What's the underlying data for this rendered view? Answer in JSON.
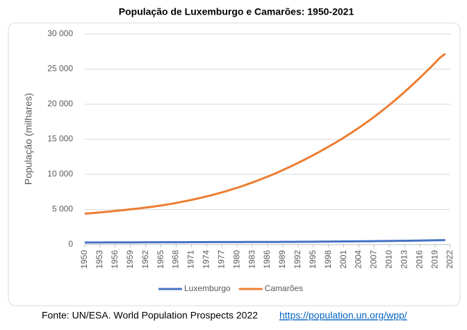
{
  "chart_data": {
    "type": "line",
    "title": "População de Luxemburgo e Camarões: 1950-2021",
    "y_label": "População (milhares)",
    "x": [
      1950,
      1951,
      1952,
      1953,
      1954,
      1955,
      1956,
      1957,
      1958,
      1959,
      1960,
      1961,
      1962,
      1963,
      1964,
      1965,
      1966,
      1967,
      1968,
      1969,
      1970,
      1971,
      1972,
      1973,
      1974,
      1975,
      1976,
      1977,
      1978,
      1979,
      1980,
      1981,
      1982,
      1983,
      1984,
      1985,
      1986,
      1987,
      1988,
      1989,
      1990,
      1991,
      1992,
      1993,
      1994,
      1995,
      1996,
      1997,
      1998,
      1999,
      2000,
      2001,
      2002,
      2003,
      2004,
      2005,
      2006,
      2007,
      2008,
      2009,
      2010,
      2011,
      2012,
      2013,
      2014,
      2015,
      2016,
      2017,
      2018,
      2019,
      2020,
      2021
    ],
    "series": [
      {
        "name": "Luxemburgo",
        "color": "#4472c4",
        "values": [
          296,
          298,
          300,
          302,
          304,
          306,
          308,
          310,
          312,
          314,
          315,
          318,
          321,
          324,
          327,
          330,
          332,
          334,
          336,
          338,
          339,
          342,
          345,
          348,
          351,
          354,
          357,
          360,
          362,
          364,
          364,
          365,
          366,
          367,
          368,
          369,
          371,
          373,
          376,
          379,
          382,
          387,
          392,
          397,
          402,
          407,
          413,
          419,
          425,
          431,
          436,
          442,
          448,
          454,
          461,
          468,
          476,
          484,
          492,
          500,
          507,
          517,
          527,
          538,
          549,
          561,
          573,
          585,
          597,
          610,
          622,
          634
        ]
      },
      {
        "name": "Camarões",
        "color": "#ed7d31",
        "values": [
          4400,
          4460,
          4520,
          4580,
          4650,
          4720,
          4790,
          4860,
          4940,
          5020,
          5100,
          5180,
          5270,
          5360,
          5460,
          5570,
          5680,
          5800,
          5930,
          6070,
          6210,
          6360,
          6520,
          6690,
          6860,
          7040,
          7230,
          7430,
          7640,
          7860,
          8090,
          8330,
          8580,
          8840,
          9110,
          9390,
          9680,
          9980,
          10290,
          10610,
          10940,
          11280,
          11630,
          11990,
          12360,
          12740,
          13130,
          13530,
          13940,
          14360,
          14790,
          15230,
          15690,
          16160,
          16650,
          17150,
          17670,
          18200,
          18750,
          19320,
          19900,
          20500,
          21120,
          21760,
          22410,
          23080,
          23760,
          24460,
          25170,
          25900,
          26650,
          27200
        ]
      }
    ],
    "xlim": [
      1950,
      2022
    ],
    "xticks": [
      1950,
      1953,
      1956,
      1959,
      1962,
      1965,
      1968,
      1971,
      1974,
      1977,
      1980,
      1983,
      1986,
      1989,
      1992,
      1995,
      1998,
      2001,
      2004,
      2007,
      2010,
      2013,
      2016,
      2019,
      2022
    ],
    "ylim": [
      0,
      30000
    ],
    "yticks": [
      0,
      {
        "value": 5000,
        "label": "5 000"
      },
      {
        "value": 10000,
        "label": "10 000"
      },
      {
        "value": 15000,
        "label": "15 000"
      },
      {
        "value": 20000,
        "label": "20 000"
      },
      {
        "value": 25000,
        "label": "25 000"
      },
      {
        "value": 30000,
        "label": "30 000"
      }
    ],
    "grid": true,
    "legend": "bottom",
    "source": {
      "text": "Fonte: UN/ESA. World Population Prospects 2022",
      "link": "https://population.un.org/wpp/"
    }
  }
}
